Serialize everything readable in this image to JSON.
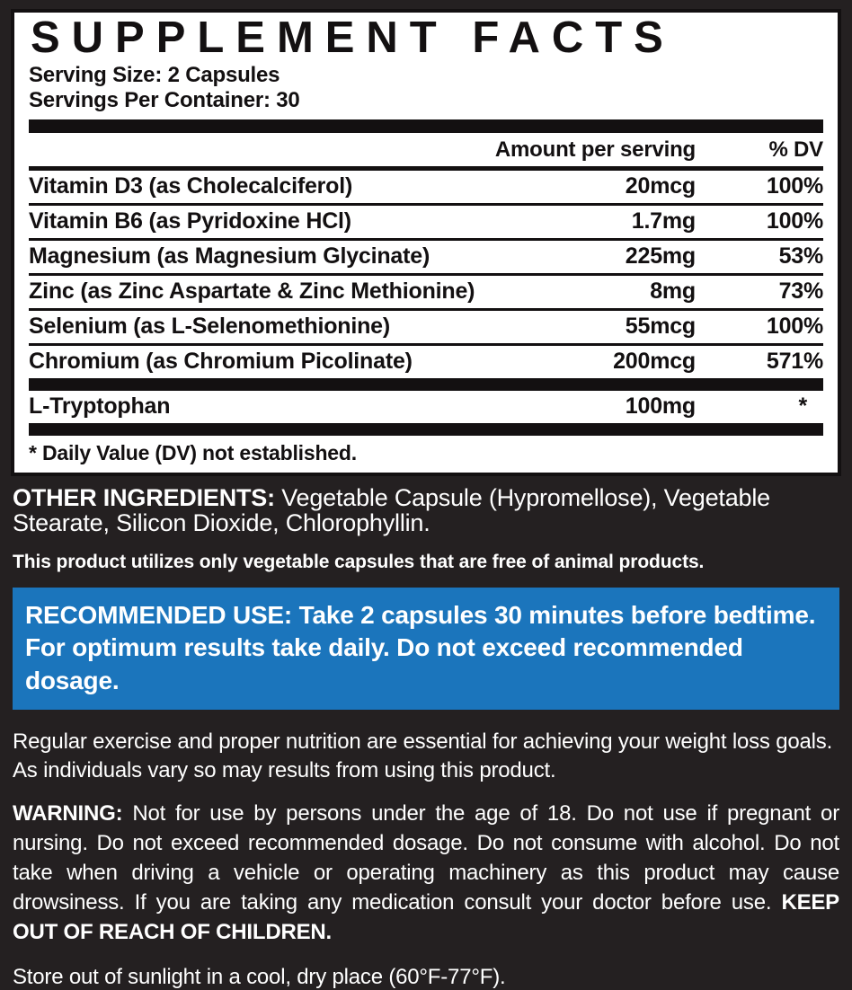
{
  "panel": {
    "title": "SUPPLEMENT FACTS",
    "serving_size": "Serving Size: 2 Capsules",
    "servings_per_container": "Servings Per Container: 30",
    "columns": {
      "amount": "Amount per serving",
      "dv": "% DV"
    },
    "rows": [
      {
        "name": "Vitamin D3 (as Cholecalciferol)",
        "amount": "20mcg",
        "dv": "100%"
      },
      {
        "name": "Vitamin B6 (as Pyridoxine HCl)",
        "amount": "1.7mg",
        "dv": "100%"
      },
      {
        "name": "Magnesium (as Magnesium Glycinate)",
        "amount": "225mg",
        "dv": "53%"
      },
      {
        "name": "Zinc (as Zinc Aspartate & Zinc Methionine)",
        "amount": "8mg",
        "dv": "73%"
      },
      {
        "name": "Selenium (as L-Selenomethionine)",
        "amount": "55mcg",
        "dv": "100%"
      },
      {
        "name": "Chromium (as Chromium Picolinate)",
        "amount": "200mcg",
        "dv": "571%"
      }
    ],
    "extra_row": {
      "name": "L-Tryptophan",
      "amount": "100mg",
      "dv": "*"
    },
    "footnote": "* Daily Value (DV) not established."
  },
  "other_ingredients": {
    "label": "OTHER INGREDIENTS:",
    "text": " Vegetable Capsule (Hypromellose), Vegetable Stearate, Silicon Dioxide, Chlorophyllin."
  },
  "vegetable_note": "This product utilizes only vegetable capsules that are free of animal products.",
  "recommended_use": {
    "label": "RECOMMENDED USE:",
    "text": " Take 2 capsules 30 minutes before bedtime. For optimum results take daily. Do not exceed recommended dosage."
  },
  "disclaimer": "Regular exercise and proper nutrition are essential for achieving your weight loss goals. As individuals vary so may results from using this product.",
  "warning": {
    "label": "WARNING:",
    "text": " Not for use by persons under the age of 18. Do not use if pregnant or nursing. Do not exceed recommended dosage. Do not consume with alcohol. Do not take when driving a vehicle or operating machinery as this product may cause drowsiness. If you are taking any medication consult your doctor before use. ",
    "emphasis": "KEEP OUT OF REACH OF CHILDREN."
  },
  "storage": "Store out of sunlight in a cool, dry place (60°F-77°F).",
  "colors": {
    "background": "#242021",
    "panel": "#ffffff",
    "panel_text": "#131011",
    "accent_blue": "#1b75bc",
    "light_text": "#ffffff"
  }
}
